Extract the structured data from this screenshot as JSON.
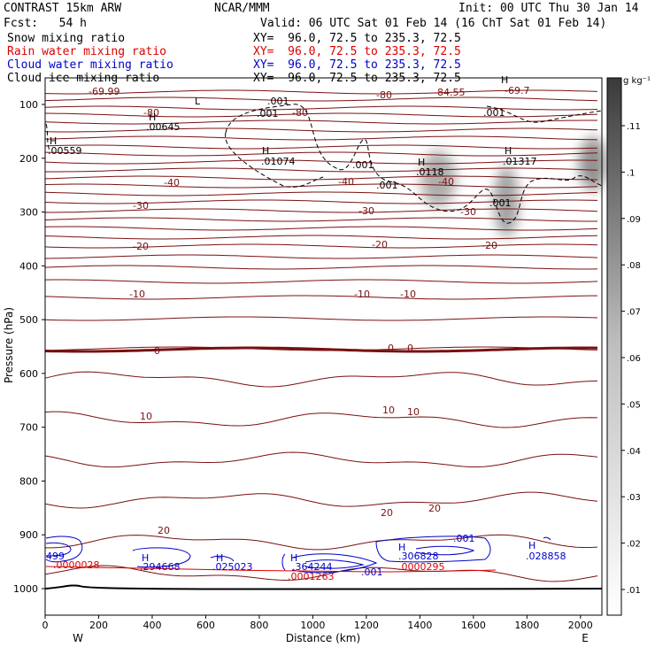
{
  "header": {
    "model": "CONTRAST 15km ARW",
    "center": "NCAR/MMM",
    "init": "Init: 00 UTC Thu 30 Jan 14",
    "fcst": "Fcst:   54 h",
    "valid": "Valid: 06 UTC Sat 01 Feb 14 (16 ChT Sat 01 Feb 14)"
  },
  "fields": [
    {
      "name": "Snow mixing ratio",
      "xy": "XY=  96.0, 72.5 to 235.3, 72.5",
      "color": "#000000"
    },
    {
      "name": "Rain water mixing ratio",
      "xy": "XY=  96.0, 72.5 to 235.3, 72.5",
      "color": "#dd0000"
    },
    {
      "name": "Cloud water mixing ratio",
      "xy": "XY=  96.0, 72.5 to 235.3, 72.5",
      "color": "#0000cc"
    },
    {
      "name": "Cloud ice mixing ratio",
      "xy": "XY=  96.0, 72.5 to 235.3, 72.5",
      "color": "#000000"
    }
  ],
  "chart_data": {
    "type": "cross-section",
    "xlabel": "Distance (km)",
    "ylabel": "Pressure (hPa)",
    "xlim": [
      0,
      2080
    ],
    "ylim": [
      1000,
      100
    ],
    "xticks": [
      0,
      200,
      400,
      600,
      800,
      1000,
      1200,
      1400,
      1600,
      1800,
      2000
    ],
    "yticks": [
      100,
      200,
      300,
      400,
      500,
      600,
      700,
      800,
      900,
      1000
    ],
    "west_label": "W",
    "east_label": "E",
    "colorbar": {
      "unit": "g kg⁻¹",
      "ticks": [
        ".11",
        ".1",
        ".09",
        ".08",
        ".07",
        ".06",
        ".05",
        ".04",
        ".03",
        ".02",
        ".01"
      ]
    },
    "temperature_labels": [
      "-69.99",
      "-80",
      "-84.55",
      "-80",
      "-80",
      "-69.7",
      "-40",
      "-40",
      "-40",
      "-30",
      "-30",
      "-30",
      "-20",
      "-20",
      "-20",
      "-10",
      "-10",
      "-10",
      "0",
      "0",
      "0",
      "10",
      "10",
      "10",
      "20",
      "20",
      "20"
    ],
    "ice_labels": [
      "H",
      ".00645",
      "H",
      ".00559",
      ".001",
      "H",
      ".01074",
      ".001",
      "H",
      ".0118",
      ".001",
      ".001",
      "H",
      ".01317",
      "L",
      ".001",
      "H",
      ".001"
    ],
    "cloud_water_labels": [
      "499",
      "H",
      ".294668",
      "H",
      ".025023",
      "H",
      ".364244",
      ".001",
      "H",
      ".306828",
      ".001",
      "H",
      ".028858"
    ],
    "rain_labels": [
      ".0000028",
      ".0001263",
      ".0000295"
    ]
  }
}
